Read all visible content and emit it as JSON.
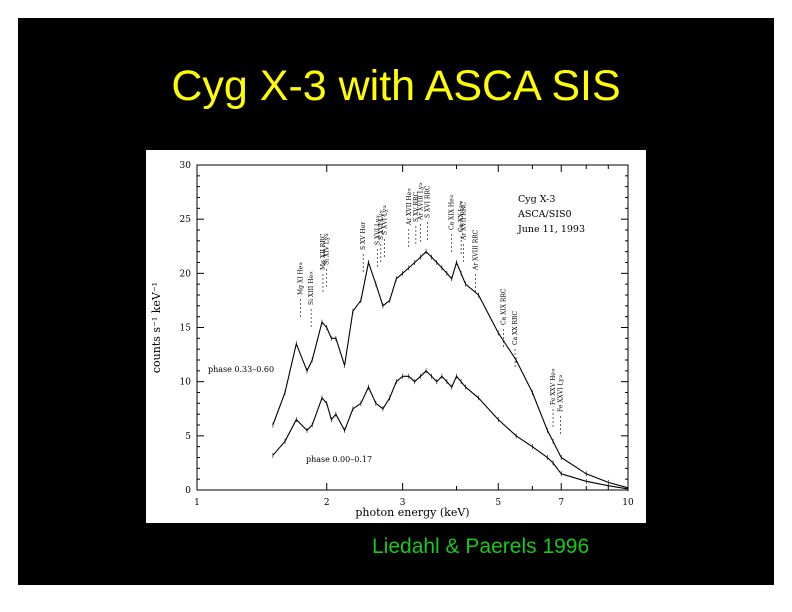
{
  "slide": {
    "title": "Cyg X-3 with ASCA SIS",
    "citation": "Liedahl & Paerels 1996",
    "title_color": "#ffff00",
    "citation_color": "#19c819",
    "background": "#000000"
  },
  "chart_data": {
    "type": "line",
    "xscale": "log",
    "xlabel": "photon energy (keV)",
    "ylabel": "counts s⁻¹ keV⁻¹",
    "xlim": [
      1,
      10
    ],
    "ylim": [
      0,
      30
    ],
    "xticks": [
      1,
      2,
      3,
      5,
      7,
      10
    ],
    "yticks": [
      0,
      5,
      10,
      15,
      20,
      25,
      30
    ],
    "grid": false,
    "legend_lines": [
      "Cyg X-3",
      "ASCA/SIS0",
      "June 11, 1993"
    ],
    "legend_position": "top-right",
    "series": [
      {
        "name": "phase 0.33–0.60",
        "x": [
          1.5,
          1.6,
          1.7,
          1.8,
          1.85,
          1.95,
          2.0,
          2.05,
          2.1,
          2.2,
          2.3,
          2.4,
          2.5,
          2.6,
          2.7,
          2.8,
          2.9,
          3.0,
          3.1,
          3.2,
          3.3,
          3.4,
          3.5,
          3.6,
          3.7,
          3.8,
          3.9,
          4.0,
          4.1,
          4.2,
          4.5,
          5.0,
          5.5,
          6.0,
          6.5,
          6.7,
          7.0,
          8.0,
          9.0,
          10.0
        ],
        "y": [
          6.0,
          9.0,
          13.5,
          11.0,
          12.0,
          15.5,
          15.0,
          14.0,
          14.0,
          11.5,
          16.5,
          17.5,
          21.0,
          19.0,
          17.0,
          17.5,
          19.5,
          20.0,
          20.5,
          21.0,
          21.5,
          22.0,
          21.5,
          21.0,
          20.5,
          20.0,
          19.5,
          21.0,
          20.0,
          19.0,
          18.0,
          14.5,
          12.0,
          9.0,
          5.5,
          4.5,
          3.0,
          1.5,
          0.7,
          0.2
        ]
      },
      {
        "name": "phase 0.00–0.17",
        "x": [
          1.5,
          1.6,
          1.7,
          1.8,
          1.85,
          1.95,
          2.0,
          2.05,
          2.1,
          2.2,
          2.3,
          2.4,
          2.5,
          2.6,
          2.7,
          2.8,
          2.9,
          3.0,
          3.1,
          3.2,
          3.3,
          3.4,
          3.5,
          3.6,
          3.7,
          3.8,
          3.9,
          4.0,
          4.1,
          4.2,
          4.5,
          5.0,
          5.5,
          6.0,
          6.5,
          6.7,
          7.0,
          8.0,
          9.0,
          10.0
        ],
        "y": [
          3.2,
          4.5,
          6.5,
          5.5,
          6.0,
          8.5,
          8.0,
          6.5,
          7.0,
          5.5,
          7.5,
          8.0,
          9.5,
          8.0,
          7.5,
          8.5,
          10.0,
          10.5,
          10.5,
          10.0,
          10.5,
          11.0,
          10.5,
          10.0,
          10.5,
          10.0,
          9.5,
          10.5,
          10.0,
          9.5,
          8.5,
          6.5,
          5.0,
          4.0,
          3.0,
          2.5,
          1.5,
          0.8,
          0.4,
          0.1
        ]
      }
    ],
    "annotations": [
      {
        "energy": 1.74,
        "label": "Mg XI He∝"
      },
      {
        "energy": 1.84,
        "label": "Si XIII He∝"
      },
      {
        "energy": 1.96,
        "label": "Mg XII RRC"
      },
      {
        "energy": 2.0,
        "label": "Si XIV Ly∝"
      },
      {
        "energy": 2.43,
        "label": "S XV Her"
      },
      {
        "energy": 2.62,
        "label": "S XVI Ly∝"
      },
      {
        "energy": 2.67,
        "label": "S XVI Ly∝"
      },
      {
        "energy": 2.72,
        "label": "S XVI Ly∝"
      },
      {
        "energy": 3.1,
        "label": "Ar XVII He∝"
      },
      {
        "energy": 3.22,
        "label": "S XV RRC"
      },
      {
        "energy": 3.3,
        "label": "Ar XVIII Ly∝"
      },
      {
        "energy": 3.43,
        "label": "S XVI RRC"
      },
      {
        "energy": 3.9,
        "label": "Ca XIX He∝"
      },
      {
        "energy": 4.1,
        "label": "Ca XX Ly∝"
      },
      {
        "energy": 4.15,
        "label": "Ar XVII RRC"
      },
      {
        "energy": 4.43,
        "label": "Ar XVIII RRC"
      },
      {
        "energy": 5.14,
        "label": "Ca XIX RRC"
      },
      {
        "energy": 5.47,
        "label": "Ca XX RRC"
      },
      {
        "energy": 6.7,
        "label": "Fe XXV He∝"
      },
      {
        "energy": 6.97,
        "label": "Fe XXVI Ly∝"
      }
    ]
  }
}
